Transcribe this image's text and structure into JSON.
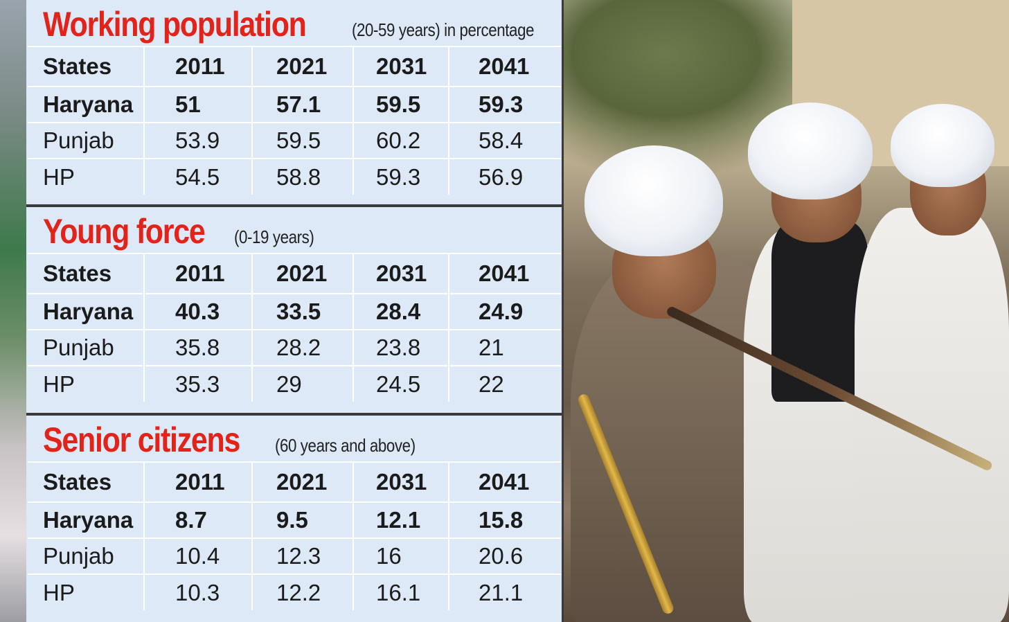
{
  "years": [
    "2011",
    "2021",
    "2031",
    "2041"
  ],
  "states_label": "States",
  "sections": [
    {
      "title": "Working population",
      "subtitle": "(20-59 years) in percentage",
      "rows": [
        {
          "state": "Haryana",
          "values": [
            "51",
            "57.1",
            "59.5",
            "59.3"
          ]
        },
        {
          "state": "Punjab",
          "values": [
            "53.9",
            "59.5",
            "60.2",
            "58.4"
          ]
        },
        {
          "state": "HP",
          "values": [
            "54.5",
            "58.8",
            "59.3",
            "56.9"
          ]
        }
      ]
    },
    {
      "title": "Young force",
      "subtitle": "(0-19 years)",
      "rows": [
        {
          "state": "Haryana",
          "values": [
            "40.3",
            "33.5",
            "28.4",
            "24.9"
          ]
        },
        {
          "state": "Punjab",
          "values": [
            "35.8",
            "28.2",
            "23.8",
            "21"
          ]
        },
        {
          "state": "HP",
          "values": [
            "35.3",
            "29",
            "24.5",
            "22"
          ]
        }
      ]
    },
    {
      "title": "Senior citizens",
      "subtitle": "(60 years and above)",
      "rows": [
        {
          "state": "Haryana",
          "values": [
            "8.7",
            "9.5",
            "12.1",
            "15.8"
          ]
        },
        {
          "state": "Punjab",
          "values": [
            "10.4",
            "12.3",
            "16",
            "20.6"
          ]
        },
        {
          "state": "HP",
          "values": [
            "10.3",
            "12.2",
            "16.1",
            "21.1"
          ]
        }
      ]
    }
  ],
  "colors": {
    "title_red": "#e2231a",
    "panel_bg": "#dde9f7",
    "separator": "#3a3a3a"
  }
}
